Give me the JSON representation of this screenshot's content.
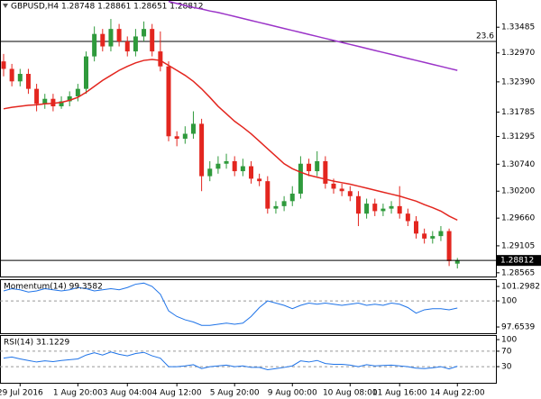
{
  "chart_data": [
    {
      "type": "candlestick",
      "title": "GBPUSD,H4  1.28748 1.28861 1.28651 1.28812",
      "categories": [
        null,
        null,
        "29 Jul 2016",
        null,
        null,
        null,
        null,
        null,
        null,
        "1 Aug 20:00",
        null,
        null,
        null,
        null,
        null,
        "3 Aug 04:00",
        null,
        null,
        null,
        null,
        null,
        "4 Aug 12:00",
        null,
        null,
        null,
        null,
        null,
        null,
        "5 Aug 20:00",
        null,
        null,
        null,
        null,
        null,
        null,
        "9 Aug 00:00",
        null,
        null,
        null,
        null,
        null,
        null,
        "10 Aug 08:00",
        null,
        null,
        null,
        null,
        null,
        "11 Aug 16:00",
        null,
        null,
        null,
        null,
        null,
        null,
        "14 Aug 22:00"
      ],
      "open": [
        1.328,
        1.3265,
        1.324,
        1.3255,
        1.3225,
        1.3195,
        1.3205,
        1.319,
        1.32,
        1.321,
        1.3225,
        1.329,
        1.3335,
        1.331,
        1.3345,
        1.332,
        1.33,
        1.333,
        1.3345,
        1.33,
        1.327,
        1.313,
        1.3125,
        1.3135,
        1.3155,
        1.305,
        1.3065,
        1.3075,
        1.308,
        1.306,
        1.307,
        1.3045,
        1.304,
        1.2985,
        1.299,
        1.3,
        1.3015,
        1.3075,
        1.306,
        1.308,
        1.3035,
        1.3025,
        1.302,
        1.301,
        1.2975,
        1.2995,
        1.298,
        1.2985,
        1.299,
        1.2975,
        1.296,
        1.2935,
        1.2925,
        1.293,
        1.294,
        1.28748
      ],
      "high": [
        1.3295,
        1.3275,
        1.3265,
        1.3265,
        1.3235,
        1.3215,
        1.3215,
        1.321,
        1.322,
        1.3235,
        1.33,
        1.335,
        1.3345,
        1.3365,
        1.3355,
        1.333,
        1.3345,
        1.336,
        1.3355,
        1.334,
        1.328,
        1.314,
        1.315,
        1.318,
        1.3165,
        1.308,
        1.309,
        1.3095,
        1.309,
        1.3085,
        1.308,
        1.3055,
        1.305,
        1.3,
        1.301,
        1.303,
        1.309,
        1.3085,
        1.31,
        1.309,
        1.3045,
        1.3035,
        1.303,
        1.302,
        1.3005,
        1.3005,
        1.2995,
        1.3,
        1.303,
        1.2985,
        1.297,
        1.2945,
        1.294,
        1.295,
        1.2945,
        1.28861
      ],
      "low": [
        1.325,
        1.323,
        1.323,
        1.3215,
        1.318,
        1.3185,
        1.318,
        1.3185,
        1.319,
        1.32,
        1.3215,
        1.328,
        1.33,
        1.33,
        1.331,
        1.329,
        1.329,
        1.332,
        1.329,
        1.326,
        1.312,
        1.311,
        1.3115,
        1.3125,
        1.302,
        1.304,
        1.3055,
        1.3065,
        1.305,
        1.305,
        1.3035,
        1.303,
        1.2975,
        1.2975,
        1.298,
        1.299,
        1.3005,
        1.305,
        1.305,
        1.3025,
        1.3015,
        1.301,
        1.3,
        1.295,
        1.2965,
        1.297,
        1.297,
        1.2975,
        1.2965,
        1.295,
        1.2925,
        1.2915,
        1.2915,
        1.292,
        1.287,
        1.28651
      ],
      "close": [
        1.3265,
        1.324,
        1.3255,
        1.3225,
        1.3195,
        1.3205,
        1.319,
        1.32,
        1.321,
        1.3225,
        1.329,
        1.3335,
        1.331,
        1.3345,
        1.332,
        1.33,
        1.333,
        1.3345,
        1.33,
        1.327,
        1.313,
        1.3125,
        1.3135,
        1.3155,
        1.305,
        1.3065,
        1.3075,
        1.308,
        1.306,
        1.307,
        1.3045,
        1.304,
        1.2985,
        1.299,
        1.3,
        1.3015,
        1.3075,
        1.306,
        1.308,
        1.3035,
        1.3025,
        1.302,
        1.301,
        1.2975,
        1.2995,
        1.298,
        1.2985,
        1.299,
        1.2975,
        1.296,
        1.2935,
        1.2925,
        1.293,
        1.294,
        1.288,
        1.28812
      ],
      "colors": {
        "up": "#2f9a3c",
        "down": "#e3261f"
      },
      "series": [
        {
          "color": "#e3261f",
          "values": [
            1.3185,
            1.3188,
            1.319,
            1.3192,
            1.3193,
            1.3195,
            1.3196,
            1.3198,
            1.3202,
            1.3208,
            1.3218,
            1.323,
            1.3242,
            1.3252,
            1.3262,
            1.327,
            1.3277,
            1.3282,
            1.3284,
            1.3282,
            1.3272,
            1.3262,
            1.3252,
            1.324,
            1.3225,
            1.3208,
            1.319,
            1.3175,
            1.316,
            1.3148,
            1.3135,
            1.312,
            1.3105,
            1.309,
            1.3075,
            1.3065,
            1.3058,
            1.3052,
            1.3048,
            1.3044,
            1.304,
            1.3037,
            1.3034,
            1.303,
            1.3026,
            1.3022,
            1.3018,
            1.3014,
            1.301,
            1.3005,
            1.3,
            1.2993,
            1.2987,
            1.298,
            1.297,
            1.2962
          ]
        },
        {
          "color": "#9b34c8",
          "values": [
            null,
            null,
            null,
            null,
            null,
            null,
            null,
            null,
            null,
            null,
            null,
            null,
            null,
            null,
            null,
            null,
            null,
            null,
            null,
            null,
            1.34,
            1.3396,
            1.3392,
            1.3388,
            1.3385,
            1.3381,
            1.3378,
            1.3374,
            1.337,
            1.3366,
            1.3362,
            1.3358,
            1.3354,
            1.335,
            1.3346,
            1.3342,
            1.3338,
            1.3334,
            1.333,
            1.3326,
            1.3322,
            1.3318,
            1.3314,
            1.331,
            1.3306,
            1.3302,
            1.3298,
            1.3294,
            1.329,
            1.3286,
            1.3282,
            1.3278,
            1.3274,
            1.327,
            1.3266,
            1.3262
          ]
        }
      ],
      "levels": [
        {
          "label": "23.6",
          "value": 1.332
        }
      ],
      "current_price": 1.28812,
      "ylim": [
        1.2849,
        1.3403
      ],
      "yticks": [
        1.33485,
        {
          "value": 1.3297,
          "label": "1.32970"
        },
        {
          "value": 1.3239,
          "label": "1.32390"
        },
        1.31785,
        1.31295,
        {
          "value": 1.3074,
          "label": "1.30740"
        },
        {
          "value": 1.302,
          "label": "1.30200"
        },
        {
          "value": 1.2966,
          "label": "1.29660"
        },
        1.29105,
        1.28565
      ]
    },
    {
      "type": "line",
      "title": "Momentum(14) 99.3582",
      "color": "#1e73e8",
      "values": [
        100.9,
        101.1,
        101.0,
        100.8,
        100.9,
        101.1,
        101.0,
        100.9,
        101.0,
        101.2,
        101.1,
        100.9,
        101.0,
        101.1,
        101.0,
        101.2,
        101.5,
        101.6,
        101.3,
        100.6,
        99.1,
        98.6,
        98.3,
        98.1,
        97.8,
        97.8,
        97.9,
        98.0,
        97.9,
        98.0,
        98.6,
        99.4,
        100.0,
        99.8,
        99.6,
        99.3,
        99.6,
        99.8,
        99.7,
        99.8,
        99.7,
        99.6,
        99.7,
        99.8,
        99.6,
        99.7,
        99.6,
        99.8,
        99.7,
        99.4,
        98.9,
        99.2,
        99.3,
        99.3,
        99.2,
        99.3582
      ],
      "levels": [
        100
      ],
      "ylim": [
        97.09,
        101.95
      ],
      "yticks": [
        101.2982,
        100,
        97.6539
      ]
    },
    {
      "type": "line",
      "title": "RSI(14) 31.1229",
      "color": "#1e73e8",
      "values": [
        52,
        55,
        50,
        46,
        42,
        45,
        43,
        46,
        48,
        50,
        60,
        66,
        60,
        68,
        62,
        58,
        64,
        67,
        58,
        52,
        30,
        30,
        32,
        35,
        25,
        30,
        32,
        34,
        30,
        32,
        28,
        28,
        22,
        25,
        28,
        32,
        45,
        42,
        46,
        38,
        36,
        36,
        34,
        30,
        35,
        32,
        33,
        34,
        32,
        30,
        26,
        25,
        27,
        30,
        24,
        31.1229
      ],
      "levels": [
        70,
        30
      ],
      "ylim": [
        -11.8,
        111.8
      ],
      "yticks": [
        100,
        70,
        30
      ]
    }
  ]
}
